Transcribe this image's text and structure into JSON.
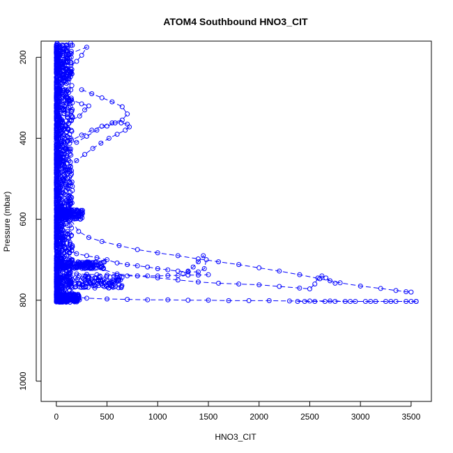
{
  "chart_data": {
    "type": "scatter",
    "title": "ATOM4 Southbound HNO3_CIT",
    "xlabel": "HNO3_CIT",
    "ylabel": "Pressure (mbar)",
    "xlim": [
      -150,
      3700
    ],
    "ylim": [
      1050,
      160
    ],
    "y_inverted": true,
    "x_ticks": [
      0,
      500,
      1000,
      1500,
      2000,
      2500,
      3000,
      3500
    ],
    "y_ticks": [
      200,
      400,
      600,
      800,
      1000
    ],
    "grid": false,
    "legend": "none",
    "marker": "open-circle",
    "color": "#0000ff",
    "series": [
      {
        "x": [
          5,
          20,
          60,
          120,
          300,
          250,
          200,
          100,
          60,
          30,
          40,
          80,
          150,
          250,
          320,
          280,
          230,
          150,
          90,
          50,
          70,
          130,
          200,
          300,
          400,
          500,
          580,
          640,
          700,
          720,
          680,
          600,
          520,
          440,
          360,
          280,
          200,
          140,
          90,
          60,
          40,
          80,
          140,
          220,
          320,
          450,
          620,
          800,
          1000,
          1200,
          1400,
          1600,
          1800,
          2000,
          2200,
          2400,
          2600,
          2800,
          3000,
          3200,
          3350,
          3450,
          3500
        ],
        "y": [
          170,
          178,
          185,
          192,
          175,
          195,
          210,
          230,
          250,
          270,
          285,
          295,
          305,
          315,
          320,
          330,
          345,
          355,
          370,
          385,
          395,
          405,
          410,
          395,
          380,
          370,
          362,
          362,
          365,
          372,
          380,
          390,
          400,
          412,
          425,
          440,
          455,
          470,
          485,
          500,
          520,
          560,
          600,
          630,
          645,
          655,
          665,
          675,
          683,
          690,
          698,
          705,
          712,
          720,
          728,
          737,
          747,
          757,
          765,
          771,
          776,
          779,
          780
        ]
      },
      {
        "x": [
          20,
          60,
          120,
          200,
          300,
          400,
          500,
          600,
          700,
          800,
          900,
          1000,
          1100,
          1200,
          1300,
          1400,
          1460,
          1480,
          1450,
          1400,
          1350,
          1300,
          1250
        ],
        "y": [
          640,
          660,
          675,
          685,
          690,
          695,
          700,
          708,
          712,
          715,
          718,
          722,
          725,
          728,
          730,
          730,
          722,
          700,
          690,
          705,
          718,
          728,
          735
        ]
      },
      {
        "x": [
          50,
          150,
          250,
          400,
          600,
          800,
          1000,
          1200,
          1400,
          1600,
          1800,
          2000,
          2200,
          2400,
          2500,
          2550,
          2580,
          2620,
          2660,
          2700,
          2750
        ],
        "y": [
          690,
          700,
          710,
          720,
          735,
          740,
          745,
          750,
          755,
          758,
          760,
          762,
          766,
          770,
          772,
          760,
          745,
          740,
          745,
          752,
          758
        ]
      },
      {
        "x": [
          100,
          300,
          500,
          700,
          900,
          1100,
          1300,
          1500,
          1700,
          1900,
          2100,
          2300,
          2500,
          2700,
          2900,
          3100,
          3300,
          3500,
          3550
        ],
        "y": [
          790,
          795,
          797,
          798,
          799,
          799,
          800,
          800,
          801,
          801,
          801,
          802,
          802,
          802,
          803,
          803,
          803,
          803,
          803
        ]
      },
      {
        "x": [
          100,
          200,
          300,
          400,
          500,
          600,
          700,
          800,
          900,
          1000,
          1100,
          1200,
          1300,
          1400,
          1500
        ],
        "y": [
          735,
          735,
          736,
          737,
          738,
          739,
          740,
          740,
          740,
          740,
          739,
          739,
          738,
          738,
          737
        ]
      },
      {
        "x": [
          2380,
          2450,
          2550,
          2650,
          2750,
          2850,
          2950,
          3050,
          3150,
          3250,
          3350,
          3450,
          3550
        ],
        "y": [
          803,
          803,
          803,
          803,
          803,
          803,
          803,
          803,
          803,
          803,
          803,
          803,
          803
        ]
      },
      {
        "x": [
          250,
          350,
          450,
          550,
          650,
          700,
          650,
          550,
          450,
          350,
          250,
          150
        ],
        "y": [
          280,
          290,
          300,
          310,
          322,
          340,
          355,
          362,
          370,
          380,
          392,
          405
        ]
      }
    ],
    "dense_band": {
      "x_range": [
        0,
        160
      ],
      "y_range": [
        165,
        805
      ]
    },
    "clusters": [
      {
        "x_range": [
          0,
          480
        ],
        "y_range": [
          705,
          722
        ]
      },
      {
        "x_range": [
          0,
          650
        ],
        "y_range": [
          740,
          770
        ]
      },
      {
        "x_range": [
          0,
          230
        ],
        "y_range": [
          785,
          805
        ]
      },
      {
        "x_range": [
          0,
          260
        ],
        "y_range": [
          575,
          600
        ]
      }
    ]
  }
}
